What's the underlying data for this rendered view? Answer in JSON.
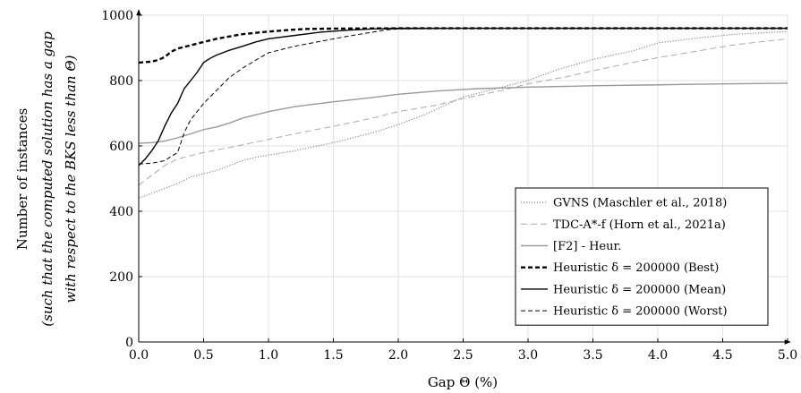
{
  "chart_data": {
    "type": "line",
    "xlabel": "Gap Θ (%)",
    "ylabel": "Number of instances",
    "ylabel_sub1": "(such that the computed solution has a gap",
    "ylabel_sub2": "with respect to the BKS less than Θ)",
    "xlim": [
      0,
      5
    ],
    "ylim": [
      0,
      1000
    ],
    "xticks": [
      0,
      0.5,
      1,
      1.5,
      2,
      2.5,
      3,
      3.5,
      4,
      4.5,
      5
    ],
    "xtick_labels": [
      "0.0",
      "0.5",
      "1.0",
      "1.5",
      "2.0",
      "2.5",
      "3.0",
      "3.5",
      "4.0",
      "4.5",
      "5.0"
    ],
    "yticks": [
      0,
      200,
      400,
      600,
      800,
      1000
    ],
    "ytick_labels": [
      "0",
      "200",
      "400",
      "600",
      "800",
      "1000"
    ],
    "grid": true,
    "legend_position": "bottom-right",
    "series": [
      {
        "name": "GVNS (Maschler et al., 2018)",
        "style": "dotted",
        "color": "#888888",
        "x": [
          0,
          0.1,
          0.2,
          0.3,
          0.4,
          0.5,
          0.6,
          0.7,
          0.8,
          0.9,
          1.0,
          1.2,
          1.5,
          1.8,
          2.0,
          2.2,
          2.5,
          2.8,
          3.0,
          3.2,
          3.5,
          3.8,
          4.0,
          4.3,
          4.6,
          5.0
        ],
        "y": [
          440,
          455,
          470,
          485,
          505,
          515,
          525,
          540,
          555,
          565,
          572,
          585,
          610,
          640,
          665,
          695,
          750,
          780,
          800,
          830,
          865,
          890,
          915,
          930,
          942,
          950
        ]
      },
      {
        "name": "TDC-A*-f (Horn et al., 2021a)",
        "style": "dashed-light",
        "color": "#aaaaaa",
        "x": [
          0,
          0.1,
          0.2,
          0.3,
          0.5,
          0.7,
          1.0,
          1.3,
          1.5,
          1.8,
          2.0,
          2.3,
          2.5,
          2.8,
          3.0,
          3.3,
          3.5,
          3.8,
          4.0,
          4.3,
          4.6,
          5.0
        ],
        "y": [
          480,
          510,
          540,
          560,
          580,
          595,
          620,
          645,
          660,
          685,
          705,
          725,
          745,
          770,
          790,
          812,
          830,
          855,
          870,
          890,
          910,
          928
        ]
      },
      {
        "name": "[F2] - Heur.",
        "style": "solid-light",
        "color": "#999999",
        "x": [
          0,
          0.1,
          0.2,
          0.3,
          0.4,
          0.5,
          0.6,
          0.7,
          0.8,
          1.0,
          1.2,
          1.5,
          1.8,
          2.0,
          2.3,
          2.6,
          3.0,
          3.5,
          4.0,
          4.5,
          5.0
        ],
        "y": [
          608,
          610,
          615,
          625,
          637,
          650,
          658,
          670,
          685,
          705,
          720,
          735,
          748,
          758,
          768,
          775,
          780,
          784,
          787,
          790,
          792
        ]
      },
      {
        "name": "Heuristic δ = 200000 (Best)",
        "style": "dashed-bold",
        "color": "#000000",
        "x": [
          0,
          0.1,
          0.15,
          0.2,
          0.25,
          0.3,
          0.4,
          0.5,
          0.6,
          0.7,
          0.8,
          0.9,
          1.0,
          1.1,
          1.2,
          1.3,
          1.5,
          2.0,
          2.5,
          3.0,
          4.0,
          5.0
        ],
        "y": [
          855,
          858,
          863,
          872,
          888,
          898,
          908,
          918,
          928,
          935,
          942,
          946,
          950,
          953,
          956,
          958,
          959,
          960,
          960,
          960,
          960,
          960
        ]
      },
      {
        "name": "Heuristic δ = 200000 (Mean)",
        "style": "solid",
        "color": "#000000",
        "x": [
          0,
          0.05,
          0.1,
          0.15,
          0.2,
          0.25,
          0.3,
          0.35,
          0.4,
          0.45,
          0.5,
          0.55,
          0.6,
          0.7,
          0.8,
          0.9,
          1.0,
          1.2,
          1.4,
          1.6,
          1.8,
          2.0,
          3.0,
          4.0,
          5.0
        ],
        "y": [
          540,
          560,
          585,
          615,
          660,
          700,
          730,
          775,
          800,
          825,
          855,
          868,
          878,
          893,
          905,
          918,
          928,
          938,
          948,
          954,
          958,
          960,
          960,
          960,
          960
        ]
      },
      {
        "name": "Heuristic δ = 200000 (Worst)",
        "style": "dashed",
        "color": "#000000",
        "x": [
          0,
          0.1,
          0.2,
          0.3,
          0.35,
          0.4,
          0.5,
          0.6,
          0.7,
          0.8,
          0.9,
          1.0,
          1.2,
          1.4,
          1.6,
          1.8,
          1.9,
          2.0,
          2.5,
          3.0,
          4.0,
          5.0
        ],
        "y": [
          545,
          547,
          555,
          580,
          640,
          680,
          730,
          770,
          810,
          838,
          862,
          885,
          905,
          920,
          935,
          948,
          955,
          958,
          960,
          960,
          960,
          960
        ]
      }
    ]
  }
}
